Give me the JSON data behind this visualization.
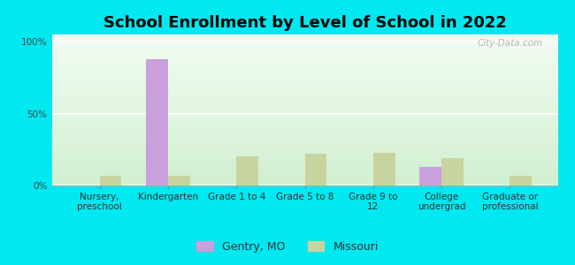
{
  "title": "School Enrollment by Level of School in 2022",
  "categories": [
    "Nursery,\npreschool",
    "Kindergarten",
    "Grade 1 to 4",
    "Grade 5 to 8",
    "Grade 9 to\n12",
    "College\nundergrad",
    "Graduate or\nprofessional"
  ],
  "gentry_values": [
    0,
    88,
    0,
    0,
    0,
    13,
    0
  ],
  "missouri_values": [
    7,
    7,
    20,
    22,
    23,
    19,
    7
  ],
  "gentry_color": "#c9a0dc",
  "missouri_color": "#c8d4a0",
  "background_outer": "#00e8f0",
  "background_inner": "#e6f2e0",
  "title_fontsize": 13,
  "tick_fontsize": 7.5,
  "legend_fontsize": 9,
  "ylim": [
    0,
    105
  ],
  "yticks": [
    0,
    50,
    100
  ],
  "ytick_labels": [
    "0%",
    "50%",
    "100%"
  ],
  "bar_width": 0.32,
  "watermark": "City-Data.com"
}
